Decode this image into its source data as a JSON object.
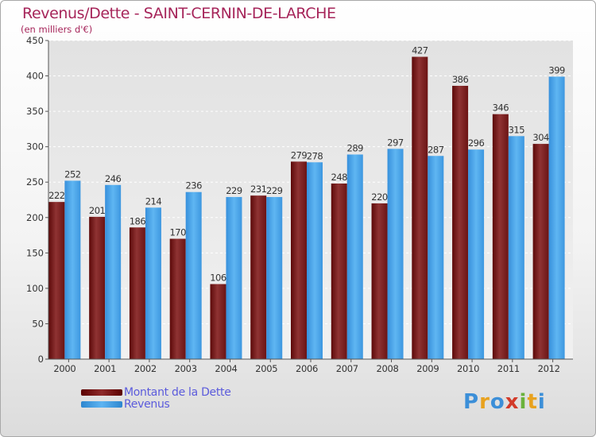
{
  "title": "Revenus/Dette - SAINT-CERNIN-DE-LARCHE",
  "subtitle": "(en milliers d'€)",
  "brand": "Proxiti",
  "chart_data": {
    "type": "bar",
    "title": "Revenus/Dette - SAINT-CERNIN-DE-LARCHE",
    "subtitle": "(en milliers d'€)",
    "categories": [
      "2000",
      "2001",
      "2002",
      "2003",
      "2004",
      "2005",
      "2006",
      "2007",
      "2008",
      "2009",
      "2010",
      "2011",
      "2012"
    ],
    "series": [
      {
        "name": "Montant de la Dette",
        "color": "#7a1f1f",
        "values": [
          222,
          201,
          186,
          170,
          106,
          231,
          279,
          248,
          220,
          427,
          386,
          346,
          304
        ]
      },
      {
        "name": "Revenus",
        "color": "#4aa3e8",
        "values": [
          252,
          246,
          214,
          236,
          229,
          229,
          278,
          289,
          297,
          287,
          296,
          315,
          399
        ]
      }
    ],
    "ylim": [
      0,
      450
    ],
    "yticks": [
      "0",
      "50",
      "100",
      "150",
      "200",
      "250",
      "300",
      "350",
      "400",
      "450"
    ],
    "grid": true,
    "legend": "bottom-left"
  }
}
